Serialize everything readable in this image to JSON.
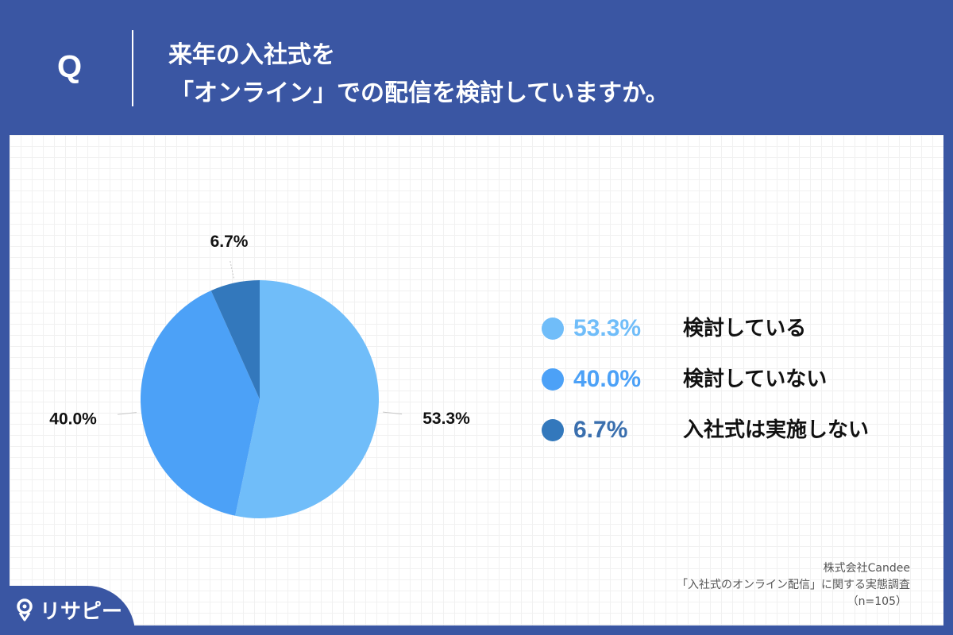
{
  "header": {
    "q_mark": "Q",
    "title_line_1": "来年の入社式を",
    "title_line_2": "「オンライン」での配信を検討していますか。"
  },
  "chart_data": {
    "type": "pie",
    "slices": [
      {
        "label": "検討している",
        "value": 53.3,
        "value_label": "53.3%",
        "color": "#70bdf9",
        "legend_pct_color": "#70bdf9"
      },
      {
        "label": "検討していない",
        "value": 40.0,
        "value_label": "40.0%",
        "color": "#4ca1f7",
        "legend_pct_color": "#4ca1f7"
      },
      {
        "label": "入社式は実施しない",
        "value": 6.7,
        "value_label": "6.7%",
        "color": "#3378bc",
        "legend_pct_color": "#3a6fae"
      }
    ],
    "start_angle_deg": 0,
    "direction": "clockwise",
    "legend_position": "right"
  },
  "source": {
    "line_1": "株式会社Candee",
    "line_2": "「入社式のオンライン配信」に関する実態調査",
    "line_3": "（n=105）"
  },
  "logo": {
    "text": "リサピー",
    "icon": "map-pin-icon"
  },
  "colors": {
    "background": "#3a56a3",
    "panel": "#ffffff"
  }
}
